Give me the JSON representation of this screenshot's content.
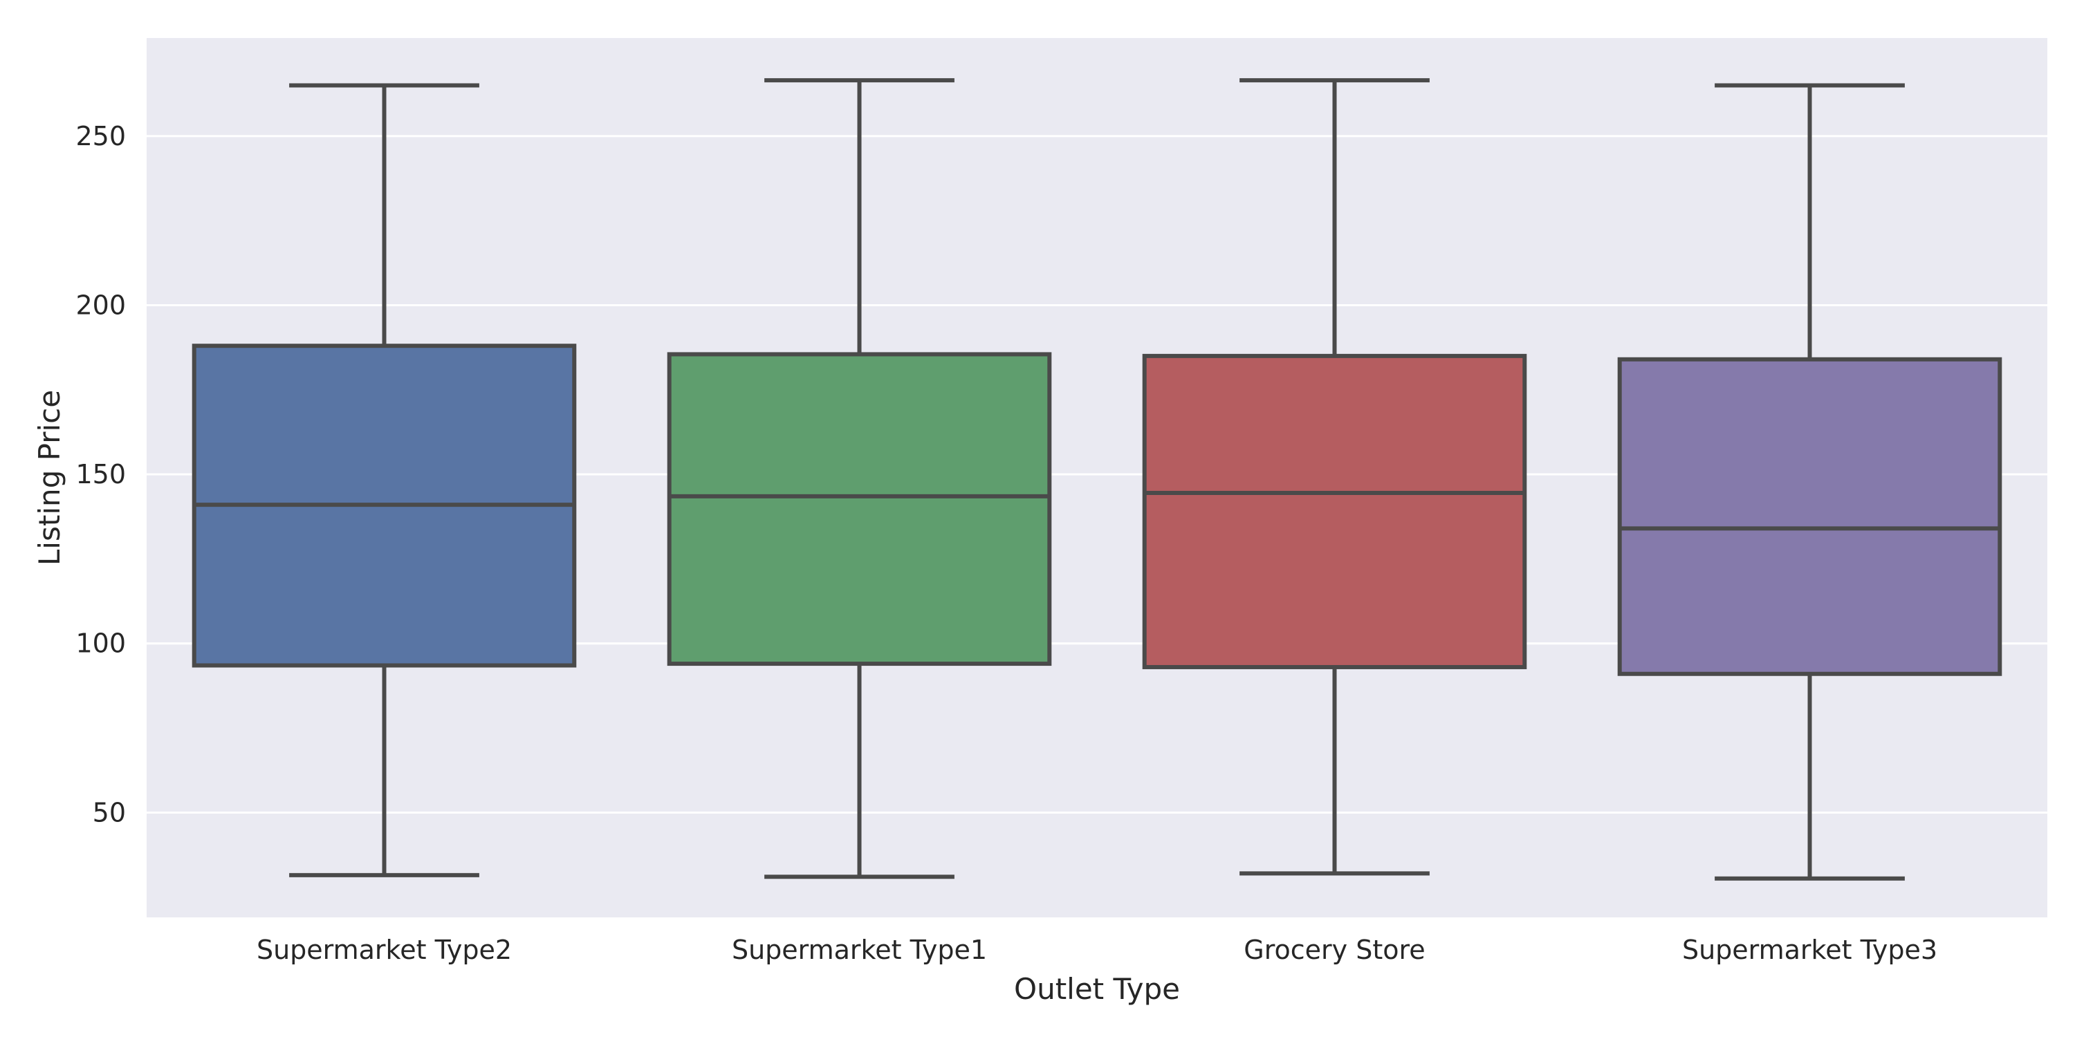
{
  "chart_data": {
    "type": "boxplot",
    "title": "",
    "xlabel": "Outlet Type",
    "ylabel": "Listing Price",
    "ylim": [
      19,
      279
    ],
    "yticks": [
      50,
      100,
      150,
      200,
      250
    ],
    "grid": true,
    "legend": "none",
    "background_color": "#eaeaf2",
    "line_color": "#4a4a4a",
    "categories": [
      "Supermarket Type2",
      "Supermarket Type1",
      "Grocery Store",
      "Supermarket Type3"
    ],
    "boxes": [
      {
        "category": "Supermarket Type2",
        "whisker_low": 31.5,
        "q1": 93.5,
        "median": 141,
        "q3": 188,
        "whisker_high": 265,
        "color": "#5975a4"
      },
      {
        "category": "Supermarket Type1",
        "whisker_low": 31,
        "q1": 94,
        "median": 143.5,
        "q3": 185.5,
        "whisker_high": 266.5,
        "color": "#5f9e6e"
      },
      {
        "category": "Grocery Store",
        "whisker_low": 32,
        "q1": 93,
        "median": 144.5,
        "q3": 185,
        "whisker_high": 266.5,
        "color": "#b55d60"
      },
      {
        "category": "Supermarket Type3",
        "whisker_low": 30.5,
        "q1": 91,
        "median": 134,
        "q3": 184,
        "whisker_high": 265,
        "color": "#857aab"
      }
    ]
  }
}
